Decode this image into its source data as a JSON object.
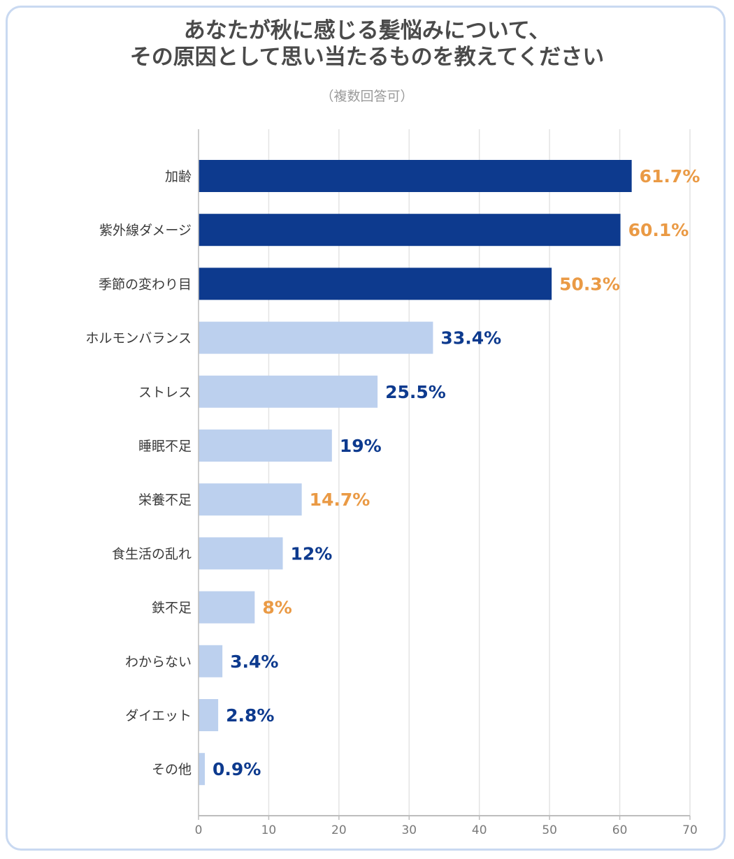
{
  "chart_data": {
    "type": "bar",
    "orientation": "horizontal",
    "title_lines": [
      "あなたが秋に感じる髪悩みについて、",
      "その原因として思い当たるものを教えてください"
    ],
    "subtitle": "（複数回答可）",
    "categories": [
      "加齢",
      "紫外線ダメージ",
      "季節の変わり目",
      "ホルモンバランス",
      "ストレス",
      "睡眠不足",
      "栄養不足",
      "食生活の乱れ",
      "鉄不足",
      "わからない",
      "ダイエット",
      "その他"
    ],
    "values": [
      61.7,
      60.1,
      50.3,
      33.4,
      25.5,
      19,
      14.7,
      12,
      8,
      3.4,
      2.8,
      0.9
    ],
    "value_labels": [
      "61.7%",
      "60.1%",
      "50.3%",
      "33.4%",
      "25.5%",
      "19%",
      "14.7%",
      "12%",
      "8%",
      "3.4%",
      "2.8%",
      "0.9%"
    ],
    "bar_color_groups": [
      "dark",
      "dark",
      "dark",
      "light",
      "light",
      "light",
      "light",
      "light",
      "light",
      "light",
      "light",
      "light"
    ],
    "label_color_groups": [
      "orange",
      "orange",
      "orange",
      "blue",
      "blue",
      "blue",
      "orange",
      "blue",
      "orange",
      "blue",
      "blue",
      "blue"
    ],
    "xlim": [
      0,
      70
    ],
    "xticks": [
      0,
      10,
      20,
      30,
      40,
      50,
      60,
      70
    ],
    "grid": true
  },
  "colors": {
    "dark_bar": "#0d3a8e",
    "light_bar": "#bcd0ee",
    "orange_label": "#ea9a45",
    "blue_label": "#0d3a8e",
    "grid": "#e4e4e4",
    "axis": "#bdbdbd",
    "frame": "#c9d9f1"
  }
}
